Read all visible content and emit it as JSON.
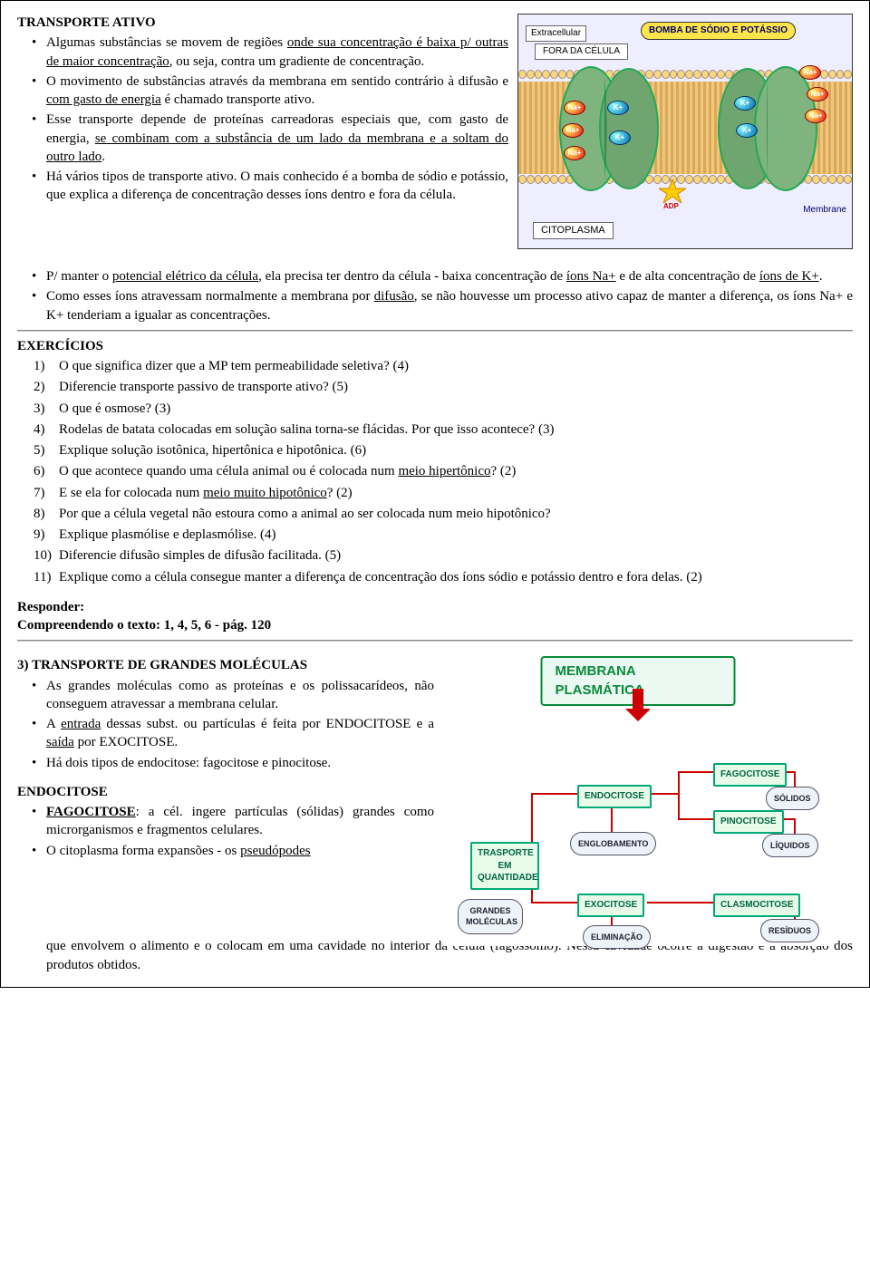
{
  "section1": {
    "title": "TRANSPORTE ATIVO",
    "b1a": "Algumas substâncias se movem de regiões ",
    "b1u": "onde sua concentração é baixa p/ outras de maior concentração",
    "b1b": ", ou seja, contra um gradiente de concentração.",
    "b2a": "O movimento de substâncias através da membrana em sentido contrário à difusão e ",
    "b2u": "com gasto de energia",
    "b2b": " é chamado transporte ativo.",
    "b3a": "Esse transporte depende de proteínas carreadoras especiais que, com gasto de energia, ",
    "b3u": "se combinam com a substância de um lado da membrana e a soltam do outro lado",
    "b3b": ".",
    "b4": "Há vários tipos de transporte ativo. O mais conhecido é a bomba de sódio e potássio, que explica a diferença de concentração desses íons dentro e fora da célula."
  },
  "section1b": {
    "b1a": "P/ manter o ",
    "b1u1": "potencial elétrico da célula",
    "b1b": ", ela precisa ter dentro da célula - baixa concentração de ",
    "b1u2": "íons Na+",
    "b1c": " e de alta concentração de ",
    "b1u3": "íons de K+",
    "b1d": ".",
    "b2a": "Como esses íons atravessam normalmente a membrana por ",
    "b2u": "difusão",
    "b2b": ", se não houvesse um processo ativo capaz de manter a diferença, os íons Na+ e K+ tenderiam a igualar as concentrações."
  },
  "exercises": {
    "title": "EXERCÍCIOS",
    "items": [
      "O que significa dizer que a MP tem permeabilidade seletiva? (4)",
      "Diferencie transporte passivo de transporte ativo? (5)",
      "O que é osmose? (3)",
      "Rodelas de batata colocadas em solução salina torna-se flácidas. Por que isso acontece? (3)",
      "Explique solução isotônica, hipertônica e hipotônica. (6)"
    ],
    "q6a": "O que acontece quando uma célula animal ou é colocada num ",
    "q6u": "meio hipertônico",
    "q6b": "? (2)",
    "q7a": "E se ela for colocada num ",
    "q7u": "meio muito hipotônico",
    "q7b": "? (2)",
    "q8": "Por que a célula vegetal não estoura como a animal ao ser colocada num meio hipotônico?",
    "q9": "Explique plasmólise e deplasmólise. (4)",
    "q10": "Diferencie difusão simples de difusão facilitada. (5)",
    "q11": "Explique como a célula consegue manter a diferença de concentração dos íons sódio e potássio dentro e fora delas. (2)"
  },
  "responder": {
    "l1": "Responder:",
    "l2": "Compreendendo o texto: 1, 4, 5, 6 - pág. 120"
  },
  "section3": {
    "title": "3) TRANSPORTE DE GRANDES MOLÉCULAS",
    "b1": "As grandes moléculas como as proteínas e os polissacarídeos, não conseguem atravessar a membrana celular.",
    "b2a": "A ",
    "b2u1": "entrada",
    "b2b": " dessas subst. ou partículas  é feita por ENDOCITOSE e a ",
    "b2u2": "saída",
    "b2c": " por EXOCITOSE.",
    "b3": "Há dois tipos de endocitose: fagocitose e pinocitose.",
    "endoTitle": "ENDOCITOSE",
    "f1u": "FAGOCITOSE",
    "f1a": ": a cél. ingere partículas (sólidas) grandes como microrganismos e fragmentos celulares.",
    "f2a": "O citoplasma forma expansões - os ",
    "f2u": "pseudópodes",
    "f2b": " que envolvem o alimento e o colocam em uma cavidade no interior da célula (fagossomo). Nessa cavidade ocorre a digestão e a absorção dos produtos obtidos."
  },
  "fig1": {
    "banner": "BOMBA DE SÓDIO E POTÁSSIO",
    "extracellular": "Extracellular",
    "fora": "FORA DA CÉLULA",
    "cito": "CITOPLASMA",
    "membrane": "Membrane",
    "na": "Na+",
    "k": "K+",
    "adp": "ADP",
    "colors": {
      "banner_bg": "#ffe54a",
      "na": "#e11",
      "k": "#06a",
      "pump": "#6fa56f"
    }
  },
  "fig2": {
    "title": "MEMBRANA PLASMÁTICA",
    "nodes": {
      "transporte": "TRASPORTE EM QUANTIDADE",
      "endo": "ENDOCITOSE",
      "exo": "EXOCITOSE",
      "fago": "FAGOCITOSE",
      "pino": "PINOCITOSE",
      "clasmo": "CLASMOCITOSE"
    },
    "clouds": {
      "englob": "ENGLOBAMENTO",
      "elim": "ELIMINAÇÃO",
      "grandes": "GRANDES MOLÉCULAS",
      "solidos": "SÓLIDOS",
      "liquidos": "LÍQUIDOS",
      "residuos": "RESÍDUOS"
    },
    "colors": {
      "title_border": "#0a8a3a",
      "node_border": "#0a7",
      "line": "#c00"
    }
  }
}
